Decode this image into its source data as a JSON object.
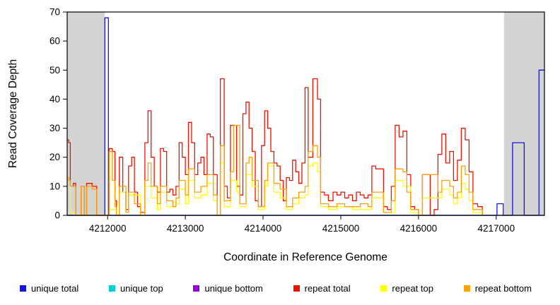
{
  "chart_data": {
    "type": "line",
    "title": "",
    "xlabel": "Coordinate in Reference Genome",
    "ylabel": "Read Coverage Depth",
    "xlim": [
      4211480,
      4217620
    ],
    "ylim": [
      0,
      70
    ],
    "xticks": [
      4212000,
      4213000,
      4214000,
      4215000,
      4216000,
      4217000
    ],
    "yticks": [
      0,
      10,
      20,
      30,
      40,
      50,
      60,
      70
    ],
    "grid": false,
    "legend_position": "bottom",
    "shade_color": "#d4d4d4",
    "shaded_regions": [
      [
        4211480,
        4211965
      ],
      [
        4217100,
        4217620
      ]
    ],
    "series": [
      {
        "name": "unique total",
        "color": "#1414dc",
        "points": [
          [
            4211480,
            0
          ],
          [
            4211965,
            68
          ],
          [
            4212010,
            0
          ],
          [
            4217010,
            4
          ],
          [
            4217090,
            0
          ],
          [
            4217210,
            25
          ],
          [
            4217360,
            0
          ],
          [
            4217550,
            50
          ],
          [
            4217620,
            50
          ]
        ]
      },
      {
        "name": "unique top",
        "color": "#00ced1",
        "points": [
          [
            4211480,
            0
          ],
          [
            4217620,
            0
          ]
        ]
      },
      {
        "name": "unique bottom",
        "color": "#9400d3",
        "points": [
          [
            4211480,
            0
          ],
          [
            4217620,
            0
          ]
        ]
      },
      {
        "name": "repeat total",
        "color": "#ee1100",
        "points": [
          [
            4211480,
            26
          ],
          [
            4211500,
            25
          ],
          [
            4211520,
            10
          ],
          [
            4211560,
            11
          ],
          [
            4211590,
            0
          ],
          [
            4211660,
            10
          ],
          [
            4211700,
            0
          ],
          [
            4211730,
            11
          ],
          [
            4211800,
            10
          ],
          [
            4211860,
            0
          ],
          [
            4212020,
            23
          ],
          [
            4212060,
            22
          ],
          [
            4212095,
            5
          ],
          [
            4212115,
            0
          ],
          [
            4212150,
            20
          ],
          [
            4212195,
            8
          ],
          [
            4212235,
            2
          ],
          [
            4212270,
            17
          ],
          [
            4212310,
            20
          ],
          [
            4212345,
            8
          ],
          [
            4212385,
            3
          ],
          [
            4212425,
            1
          ],
          [
            4212480,
            25
          ],
          [
            4212520,
            36
          ],
          [
            4212560,
            20
          ],
          [
            4212600,
            10
          ],
          [
            4212640,
            8
          ],
          [
            4212680,
            23
          ],
          [
            4212720,
            22
          ],
          [
            4212760,
            8
          ],
          [
            4212800,
            9
          ],
          [
            4212840,
            7
          ],
          [
            4212880,
            10
          ],
          [
            4212920,
            25
          ],
          [
            4212960,
            20
          ],
          [
            4213000,
            14
          ],
          [
            4213040,
            32
          ],
          [
            4213080,
            25
          ],
          [
            4213120,
            14
          ],
          [
            4213160,
            18
          ],
          [
            4213200,
            20
          ],
          [
            4213240,
            14
          ],
          [
            4213280,
            28
          ],
          [
            4213320,
            27
          ],
          [
            4213360,
            14
          ],
          [
            4213410,
            0
          ],
          [
            4213450,
            47
          ],
          [
            4213500,
            10
          ],
          [
            4213540,
            6
          ],
          [
            4213580,
            31
          ],
          [
            4213620,
            31
          ],
          [
            4213660,
            10
          ],
          [
            4213700,
            7
          ],
          [
            4213740,
            35
          ],
          [
            4213780,
            39
          ],
          [
            4213820,
            30
          ],
          [
            4213860,
            22
          ],
          [
            4213900,
            5
          ],
          [
            4213940,
            3
          ],
          [
            4213980,
            24
          ],
          [
            4214020,
            36
          ],
          [
            4214060,
            30
          ],
          [
            4214100,
            22
          ],
          [
            4214140,
            18
          ],
          [
            4214180,
            17
          ],
          [
            4214220,
            12
          ],
          [
            4214260,
            5
          ],
          [
            4214300,
            13
          ],
          [
            4214340,
            12
          ],
          [
            4214380,
            19
          ],
          [
            4214420,
            15
          ],
          [
            4214460,
            11
          ],
          [
            4214500,
            18
          ],
          [
            4214540,
            44
          ],
          [
            4214580,
            20
          ],
          [
            4214640,
            47
          ],
          [
            4214700,
            40
          ],
          [
            4214740,
            8
          ],
          [
            4214790,
            7
          ],
          [
            4214840,
            5
          ],
          [
            4214900,
            8
          ],
          [
            4214950,
            7
          ],
          [
            4215000,
            8
          ],
          [
            4215050,
            6
          ],
          [
            4215100,
            7
          ],
          [
            4215150,
            5
          ],
          [
            4215200,
            8
          ],
          [
            4215250,
            7
          ],
          [
            4215300,
            6
          ],
          [
            4215350,
            7
          ],
          [
            4215400,
            17
          ],
          [
            4215450,
            16
          ],
          [
            4215500,
            16
          ],
          [
            4215550,
            3
          ],
          [
            4215600,
            2
          ],
          [
            4215650,
            10
          ],
          [
            4215700,
            31
          ],
          [
            4215750,
            27
          ],
          [
            4215800,
            29
          ],
          [
            4215850,
            14
          ],
          [
            4215900,
            3
          ],
          [
            4215950,
            2
          ],
          [
            4216000,
            0
          ],
          [
            4216050,
            14
          ],
          [
            4216100,
            14
          ],
          [
            4216150,
            0
          ],
          [
            4216200,
            2
          ],
          [
            4216250,
            21
          ],
          [
            4216300,
            28
          ],
          [
            4216350,
            18
          ],
          [
            4216400,
            22
          ],
          [
            4216450,
            12
          ],
          [
            4216500,
            19
          ],
          [
            4216550,
            30
          ],
          [
            4216600,
            26
          ],
          [
            4216650,
            15
          ],
          [
            4216700,
            4
          ],
          [
            4216760,
            3
          ],
          [
            4216820,
            0
          ]
        ]
      },
      {
        "name": "repeat top",
        "color": "#ffff00",
        "points": [
          [
            4211480,
            12
          ],
          [
            4211520,
            1
          ],
          [
            4211590,
            0
          ],
          [
            4212020,
            2
          ],
          [
            4212115,
            0
          ],
          [
            4212150,
            8
          ],
          [
            4212235,
            1
          ],
          [
            4212270,
            7
          ],
          [
            4212425,
            0
          ],
          [
            4212480,
            10
          ],
          [
            4212560,
            6
          ],
          [
            4212640,
            2
          ],
          [
            4212680,
            8
          ],
          [
            4212760,
            3
          ],
          [
            4212880,
            4
          ],
          [
            4212920,
            9
          ],
          [
            4213000,
            4
          ],
          [
            4213040,
            12
          ],
          [
            4213120,
            6
          ],
          [
            4213200,
            7
          ],
          [
            4213280,
            11
          ],
          [
            4213360,
            5
          ],
          [
            4213410,
            0
          ],
          [
            4213450,
            18
          ],
          [
            4213500,
            3
          ],
          [
            4213580,
            12
          ],
          [
            4213660,
            8
          ],
          [
            4213700,
            3
          ],
          [
            4213780,
            14
          ],
          [
            4213860,
            10
          ],
          [
            4213940,
            2
          ],
          [
            4214020,
            10
          ],
          [
            4214060,
            17
          ],
          [
            4214140,
            8
          ],
          [
            4214220,
            6
          ],
          [
            4214300,
            2
          ],
          [
            4214380,
            4
          ],
          [
            4214460,
            6
          ],
          [
            4214540,
            7
          ],
          [
            4214580,
            17
          ],
          [
            4214640,
            18
          ],
          [
            4214700,
            15
          ],
          [
            4214740,
            3
          ],
          [
            4214840,
            2
          ],
          [
            4214950,
            3
          ],
          [
            4215150,
            2
          ],
          [
            4215350,
            2
          ],
          [
            4215400,
            6
          ],
          [
            4215550,
            1
          ],
          [
            4215700,
            12
          ],
          [
            4215800,
            10
          ],
          [
            4215900,
            1
          ],
          [
            4216000,
            0
          ],
          [
            4216050,
            6
          ],
          [
            4216250,
            6
          ],
          [
            4216300,
            9
          ],
          [
            4216400,
            7
          ],
          [
            4216450,
            4
          ],
          [
            4216500,
            6
          ],
          [
            4216550,
            11
          ],
          [
            4216600,
            9
          ],
          [
            4216650,
            5
          ],
          [
            4216700,
            1
          ],
          [
            4216820,
            0
          ]
        ]
      },
      {
        "name": "repeat bottom",
        "color": "#ffa000",
        "points": [
          [
            4211480,
            13
          ],
          [
            4211500,
            12
          ],
          [
            4211520,
            10
          ],
          [
            4211560,
            10
          ],
          [
            4211590,
            0
          ],
          [
            4211660,
            10
          ],
          [
            4211700,
            0
          ],
          [
            4211730,
            10
          ],
          [
            4211800,
            9
          ],
          [
            4211860,
            0
          ],
          [
            4212020,
            22
          ],
          [
            4212060,
            12
          ],
          [
            4212095,
            3
          ],
          [
            4212115,
            0
          ],
          [
            4212150,
            10
          ],
          [
            4212235,
            1
          ],
          [
            4212270,
            8
          ],
          [
            4212345,
            4
          ],
          [
            4212425,
            0
          ],
          [
            4212480,
            12
          ],
          [
            4212520,
            18
          ],
          [
            4212560,
            10
          ],
          [
            4212640,
            4
          ],
          [
            4212680,
            10
          ],
          [
            4212760,
            5
          ],
          [
            4212840,
            3
          ],
          [
            4212880,
            6
          ],
          [
            4212920,
            12
          ],
          [
            4213000,
            7
          ],
          [
            4213040,
            16
          ],
          [
            4213120,
            8
          ],
          [
            4213200,
            10
          ],
          [
            4213280,
            14
          ],
          [
            4213360,
            7
          ],
          [
            4213410,
            0
          ],
          [
            4213450,
            24
          ],
          [
            4213500,
            5
          ],
          [
            4213580,
            15
          ],
          [
            4213620,
            31
          ],
          [
            4213700,
            4
          ],
          [
            4213780,
            18
          ],
          [
            4213820,
            20
          ],
          [
            4213860,
            12
          ],
          [
            4213940,
            3
          ],
          [
            4214020,
            12
          ],
          [
            4214060,
            18
          ],
          [
            4214140,
            11
          ],
          [
            4214220,
            9
          ],
          [
            4214300,
            3
          ],
          [
            4214380,
            6
          ],
          [
            4214460,
            8
          ],
          [
            4214540,
            10
          ],
          [
            4214580,
            22
          ],
          [
            4214640,
            24
          ],
          [
            4214700,
            20
          ],
          [
            4214740,
            4
          ],
          [
            4214840,
            3
          ],
          [
            4214950,
            4
          ],
          [
            4215050,
            3
          ],
          [
            4215150,
            3
          ],
          [
            4215250,
            4
          ],
          [
            4215350,
            3
          ],
          [
            4215400,
            8
          ],
          [
            4215550,
            1
          ],
          [
            4215650,
            5
          ],
          [
            4215700,
            16
          ],
          [
            4215800,
            15
          ],
          [
            4215850,
            8
          ],
          [
            4215900,
            2
          ],
          [
            4216000,
            0
          ],
          [
            4216050,
            14
          ],
          [
            4216250,
            8
          ],
          [
            4216300,
            12
          ],
          [
            4216400,
            10
          ],
          [
            4216450,
            6
          ],
          [
            4216500,
            8
          ],
          [
            4216550,
            17
          ],
          [
            4216600,
            14
          ],
          [
            4216650,
            8
          ],
          [
            4216700,
            2
          ],
          [
            4216760,
            2
          ],
          [
            4216820,
            0
          ]
        ]
      }
    ]
  }
}
